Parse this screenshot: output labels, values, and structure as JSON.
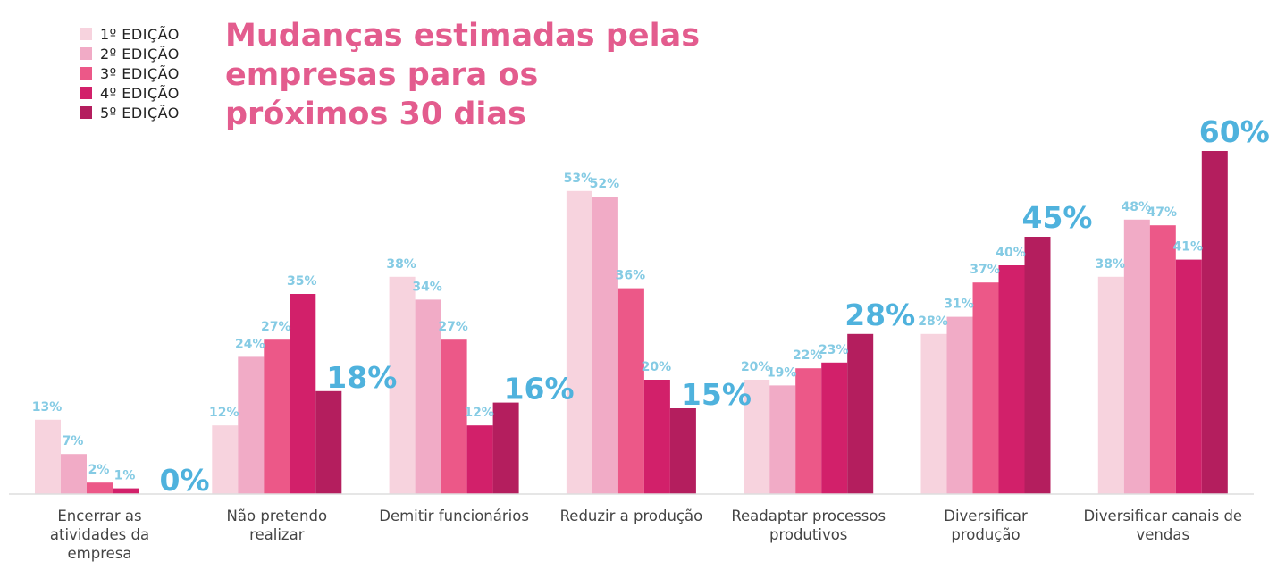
{
  "chart_data": {
    "type": "bar",
    "title": [
      "Mudanças estimadas pelas",
      "empresas para os",
      "próximos 30 dias"
    ],
    "legend_position": "top-left",
    "series": [
      {
        "name": "1º EDIÇÃO",
        "color": "#f7d3de",
        "values": [
          13,
          12,
          38,
          53,
          20,
          28,
          38
        ]
      },
      {
        "name": "2º EDIÇÃO",
        "color": "#f1abc6",
        "values": [
          7,
          24,
          34,
          52,
          19,
          31,
          48
        ]
      },
      {
        "name": "3º EDIÇÃO",
        "color": "#ec5888",
        "values": [
          2,
          27,
          27,
          36,
          22,
          37,
          47
        ]
      },
      {
        "name": "4º EDIÇÃO",
        "color": "#d2206a",
        "values": [
          1,
          35,
          12,
          20,
          23,
          40,
          41
        ]
      },
      {
        "name": "5º EDIÇÃO",
        "color": "#b41e5e",
        "values": [
          0,
          18,
          16,
          15,
          28,
          45,
          60
        ]
      }
    ],
    "categories": [
      [
        "Encerrar as",
        "atividades da",
        "empresa"
      ],
      [
        "Não pretendo",
        "realizar"
      ],
      [
        "Demitir funcionários"
      ],
      [
        "Reduzir a produção"
      ],
      [
        "Readaptar processos",
        "produtivos"
      ],
      [
        "Diversificar",
        "produção"
      ],
      [
        "Diversificar canais de",
        "vendas"
      ]
    ],
    "data_labels": [
      [
        "13%",
        "7%",
        "2%",
        "1%",
        "0%"
      ],
      [
        "12%",
        "24%",
        "27%",
        "35%",
        "18%"
      ],
      [
        "38%",
        "34%",
        "27%",
        "12%",
        "16%"
      ],
      [
        "53%",
        "52%",
        "36%",
        "20%",
        "15%"
      ],
      [
        "20%",
        "19%",
        "22%",
        "23%",
        "28%"
      ],
      [
        "28%",
        "31%",
        "37%",
        "40%",
        "45%"
      ],
      [
        "38%",
        "48%",
        "47%",
        "41%",
        "60%"
      ]
    ],
    "ylim": [
      0,
      65
    ],
    "grid": false
  }
}
